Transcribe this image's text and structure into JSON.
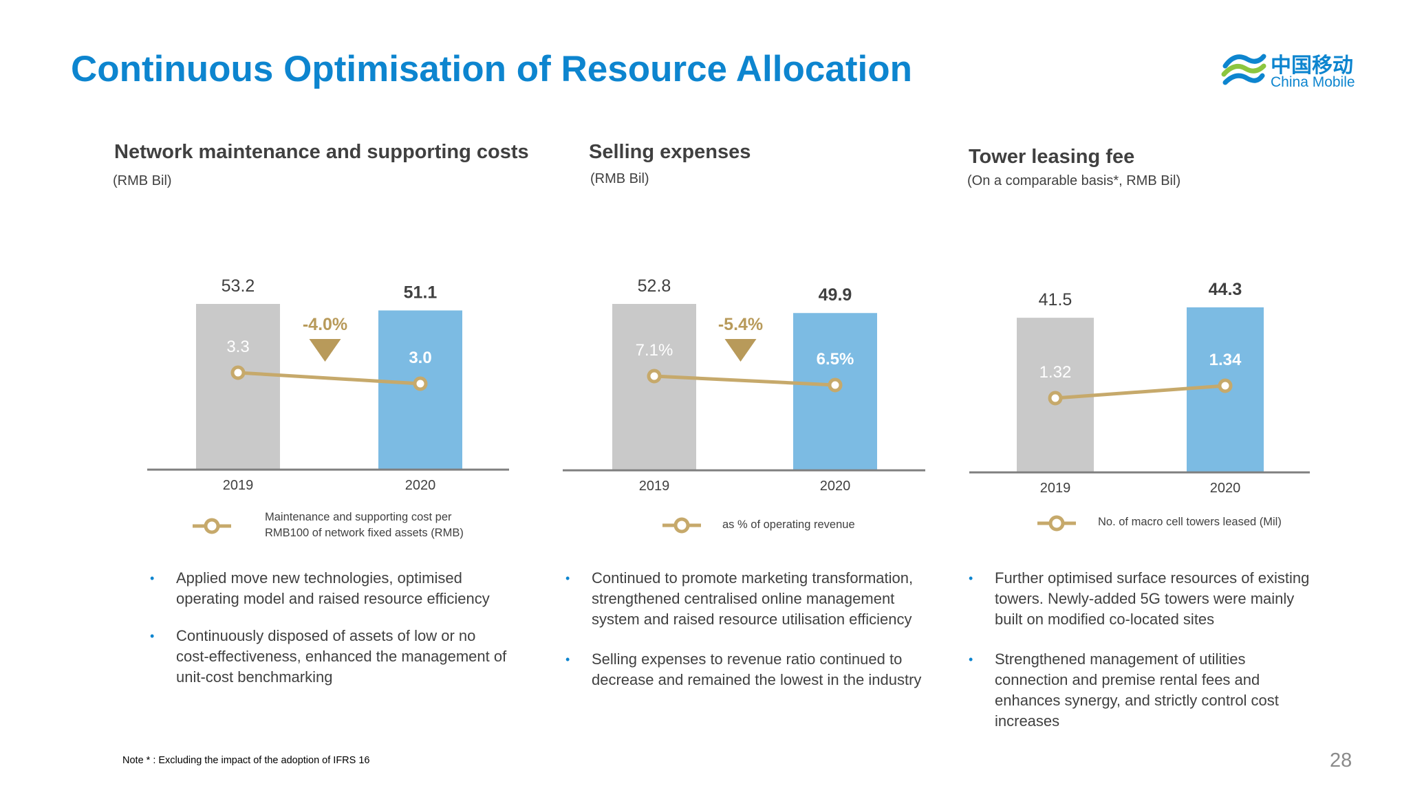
{
  "slide": {
    "title": "Continuous Optimisation of Resource Allocation",
    "note": "Note * : Excluding the impact of the adoption of IFRS 16",
    "page_number": "28",
    "colors": {
      "accent": "#0d85cf",
      "bar_2019": "#c9c9c9",
      "bar_2020": "#7cbbe3",
      "line": "#c6a96b",
      "change": "#b89a5a"
    }
  },
  "logo": {
    "cn": "中国移动",
    "en": "China Mobile",
    "icon": "china-mobile-logo-icon"
  },
  "panels": [
    {
      "title": "Network maintenance and supporting costs",
      "unit": "(RMB Bil)",
      "legend_line1": "Maintenance and supporting cost per",
      "legend_line2": "RMB100 of network fixed assets (RMB)",
      "bullets": [
        "Applied move new technologies, optimised operating model and raised resource efficiency",
        "Continuously disposed of assets of low or no cost-effectiveness, enhanced the management of unit-cost benchmarking"
      ]
    },
    {
      "title": "Selling expenses",
      "unit": "(RMB Bil)",
      "legend_line1": "as % of operating revenue",
      "legend_line2": "",
      "bullets": [
        "Continued to promote marketing transformation, strengthened centralised online management system and raised resource utilisation efficiency",
        "Selling expenses to revenue ratio continued to decrease and remained the lowest in the industry"
      ]
    },
    {
      "title": "Tower leasing fee",
      "unit": "(On a comparable basis*, RMB Bil)",
      "legend_line1": "No. of macro cell towers leased (Mil)",
      "legend_line2": "",
      "bullets": [
        "Further optimised surface resources of existing towers. Newly-added 5G towers were mainly built on modified co-located sites",
        "Strengthened management of utilities connection and premise rental fees and enhances synergy, and strictly control cost increases"
      ]
    }
  ],
  "chart_data": [
    {
      "type": "bar",
      "title": "Network maintenance and supporting costs",
      "ylabel": "(RMB Bil)",
      "categories": [
        "2019",
        "2020"
      ],
      "series": [
        {
          "values": [
            53.2,
            51.1
          ],
          "labels": [
            "53.2",
            "51.1"
          ]
        },
        {
          "name": "Maintenance and supporting cost per RMB100 of network fixed assets (RMB)",
          "values": [
            3.3,
            3.0
          ],
          "labels": [
            "3.3",
            "3.0"
          ]
        }
      ],
      "change_label": "-4.0%",
      "change_direction": "down",
      "ylim": [
        0,
        60
      ],
      "grid": false,
      "legend": "bottom"
    },
    {
      "type": "bar",
      "title": "Selling expenses",
      "ylabel": "(RMB Bil)",
      "categories": [
        "2019",
        "2020"
      ],
      "series": [
        {
          "values": [
            52.8,
            49.9
          ],
          "labels": [
            "52.8",
            "49.9"
          ]
        },
        {
          "name": "as % of operating revenue",
          "values": [
            7.1,
            6.5
          ],
          "labels": [
            "7.1%",
            "6.5%"
          ]
        }
      ],
      "change_label": "-5.4%",
      "change_direction": "down",
      "ylim": [
        0,
        60
      ],
      "grid": false,
      "legend": "bottom"
    },
    {
      "type": "bar",
      "title": "Tower leasing fee",
      "ylabel": "(On a comparable basis*, RMB Bil)",
      "categories": [
        "2019",
        "2020"
      ],
      "series": [
        {
          "values": [
            41.5,
            44.3
          ],
          "labels": [
            "41.5",
            "44.3"
          ]
        },
        {
          "name": "No. of macro cell towers leased (Mil)",
          "values": [
            1.32,
            1.34
          ],
          "labels": [
            "1.32",
            "1.34"
          ]
        }
      ],
      "change_label": "",
      "change_direction": "",
      "ylim": [
        0,
        60
      ],
      "grid": false,
      "legend": "bottom"
    }
  ]
}
